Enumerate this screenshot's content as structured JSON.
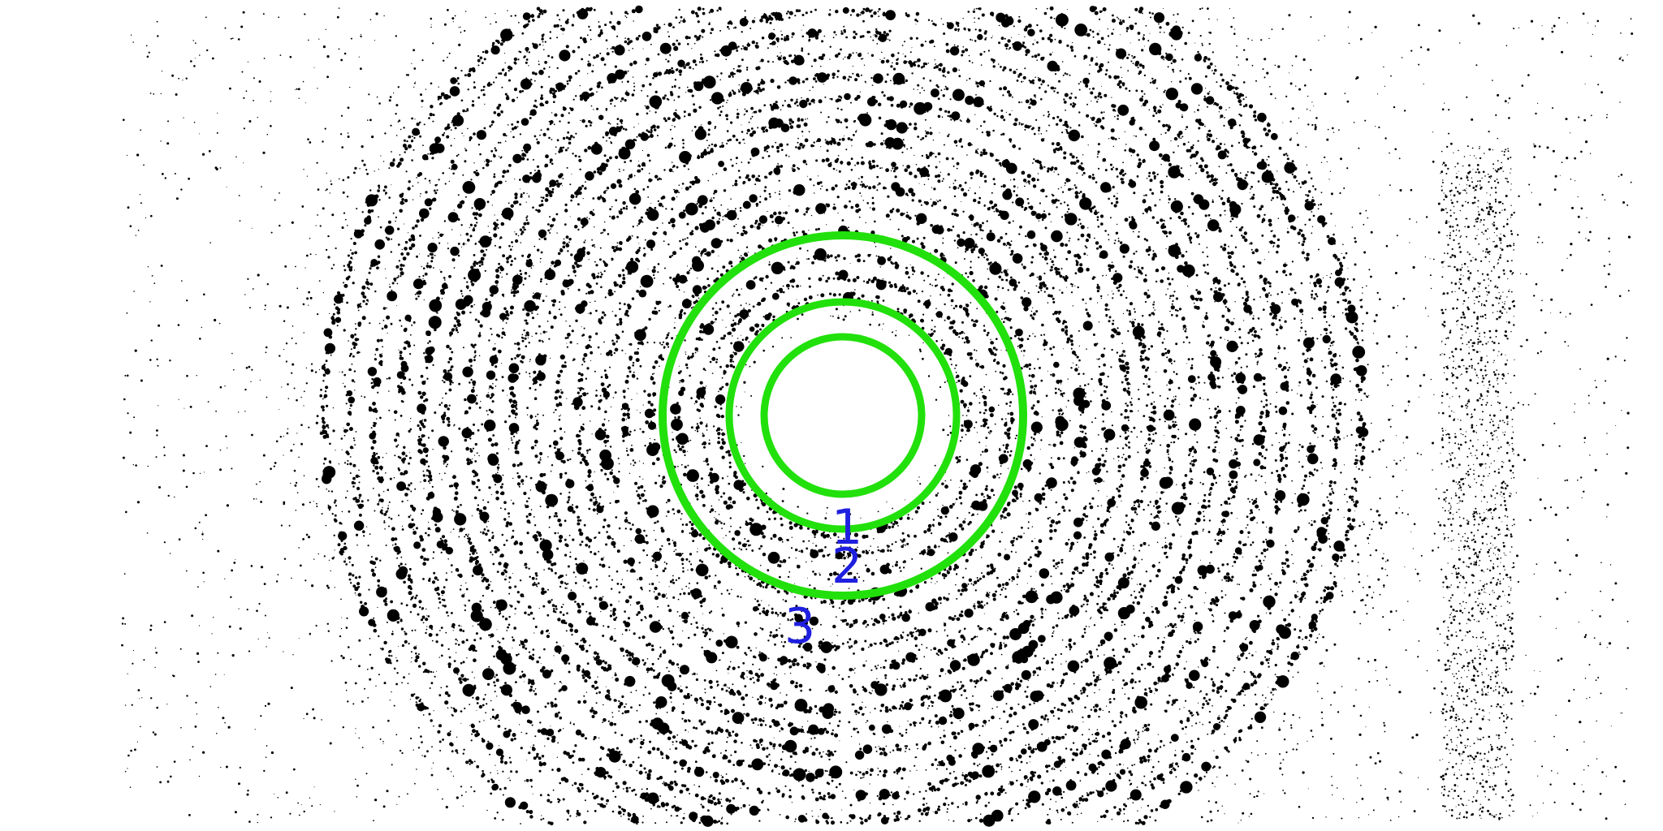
{
  "image": {
    "type": "x-ray diffraction pattern",
    "background_color": "#ffffff",
    "speckle_color": "#000000",
    "ring_color": "#22e00b",
    "label_color": "#1f1fe0"
  },
  "rings": [
    {
      "label": "1"
    },
    {
      "label": "2"
    },
    {
      "label": "3"
    }
  ]
}
